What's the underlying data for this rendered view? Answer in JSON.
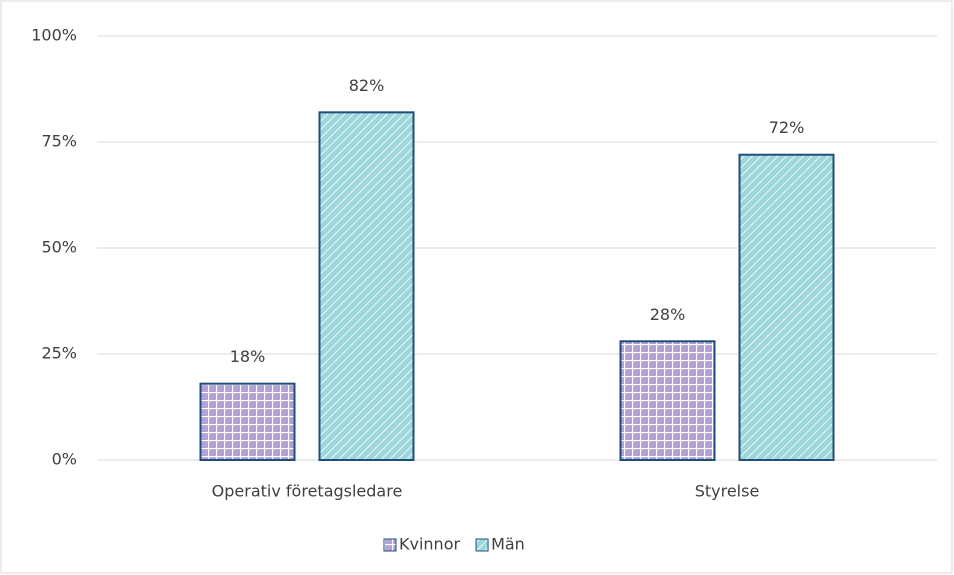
{
  "chart_data": {
    "type": "bar",
    "categories": [
      "Operativ företagsledare",
      "Styrelse"
    ],
    "series": [
      {
        "name": "Kvinnor",
        "color": "#b4a2d6",
        "values": [
          18,
          28
        ],
        "value_labels": [
          "18%",
          "28%"
        ]
      },
      {
        "name": "Män",
        "color": "#9dd7dc",
        "values": [
          82,
          72
        ],
        "value_labels": [
          "82%",
          "72%"
        ]
      }
    ],
    "edgecolor": "#1f4e79",
    "ylim": [
      0,
      100
    ],
    "yticks": [
      {
        "value": 0,
        "label": "0%"
      },
      {
        "value": 25,
        "label": "25%"
      },
      {
        "value": 50,
        "label": "50%"
      },
      {
        "value": 75,
        "label": "75%"
      },
      {
        "value": 100,
        "label": "100%"
      }
    ],
    "grid": true,
    "legend": "bottom"
  }
}
